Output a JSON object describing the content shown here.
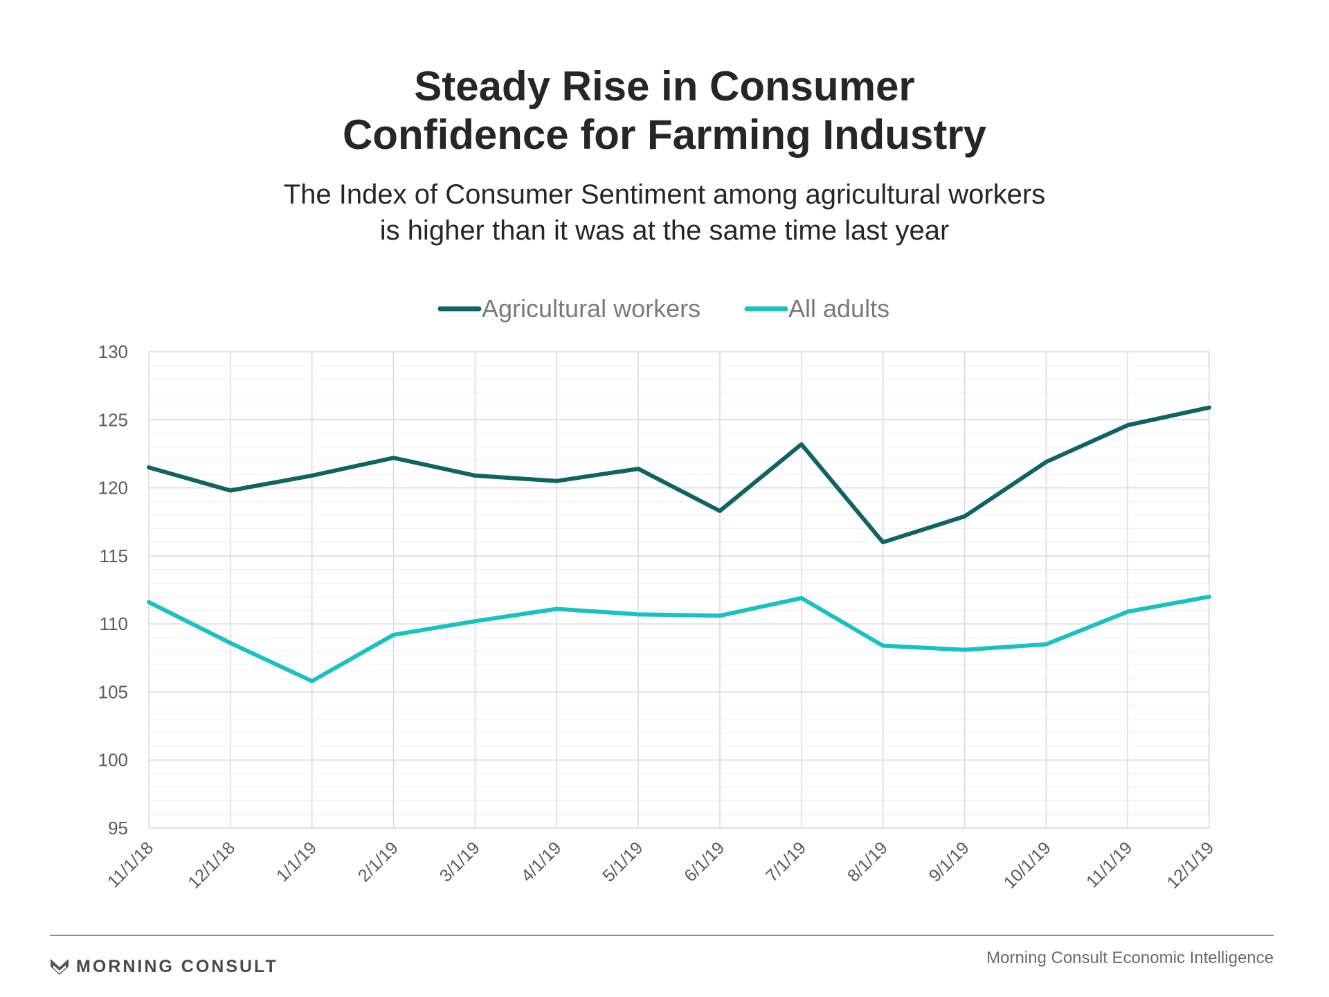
{
  "title_lines": [
    "Steady Rise in Consumer",
    "Confidence for Farming Industry"
  ],
  "subtitle_lines": [
    "The Index of Consumer Sentiment among agricultural workers",
    "is higher than it was at the same time last year"
  ],
  "footer": {
    "brand": "MORNING CONSULT",
    "source": "Morning Consult Economic Intelligence"
  },
  "colors": {
    "agricultural": "#0e6462",
    "all_adults": "#18c2c1",
    "grid": "#d9d9d9",
    "minor_grid": "#f0f0f0",
    "tick_text": "#5a5a5a"
  },
  "chart_data": {
    "type": "line",
    "x": [
      "11/1/18",
      "12/1/18",
      "1/1/19",
      "2/1/19",
      "3/1/19",
      "4/1/19",
      "5/1/19",
      "6/1/19",
      "7/1/19",
      "8/1/19",
      "9/1/19",
      "10/1/19",
      "11/1/19",
      "12/1/19"
    ],
    "series": [
      {
        "name": "Agricultural workers",
        "values": [
          121.5,
          119.8,
          120.9,
          122.2,
          120.9,
          120.5,
          121.4,
          118.3,
          123.2,
          116.0,
          117.9,
          121.9,
          124.6,
          125.9
        ]
      },
      {
        "name": "All adults",
        "values": [
          111.6,
          108.6,
          105.8,
          109.2,
          110.2,
          111.1,
          110.7,
          110.6,
          111.9,
          108.4,
          108.1,
          108.5,
          110.9,
          112.0
        ]
      }
    ],
    "ylim": [
      95,
      130
    ],
    "yticks": [
      95,
      100,
      105,
      110,
      115,
      120,
      125,
      130
    ],
    "legend_position": "top-center",
    "grid": true
  }
}
